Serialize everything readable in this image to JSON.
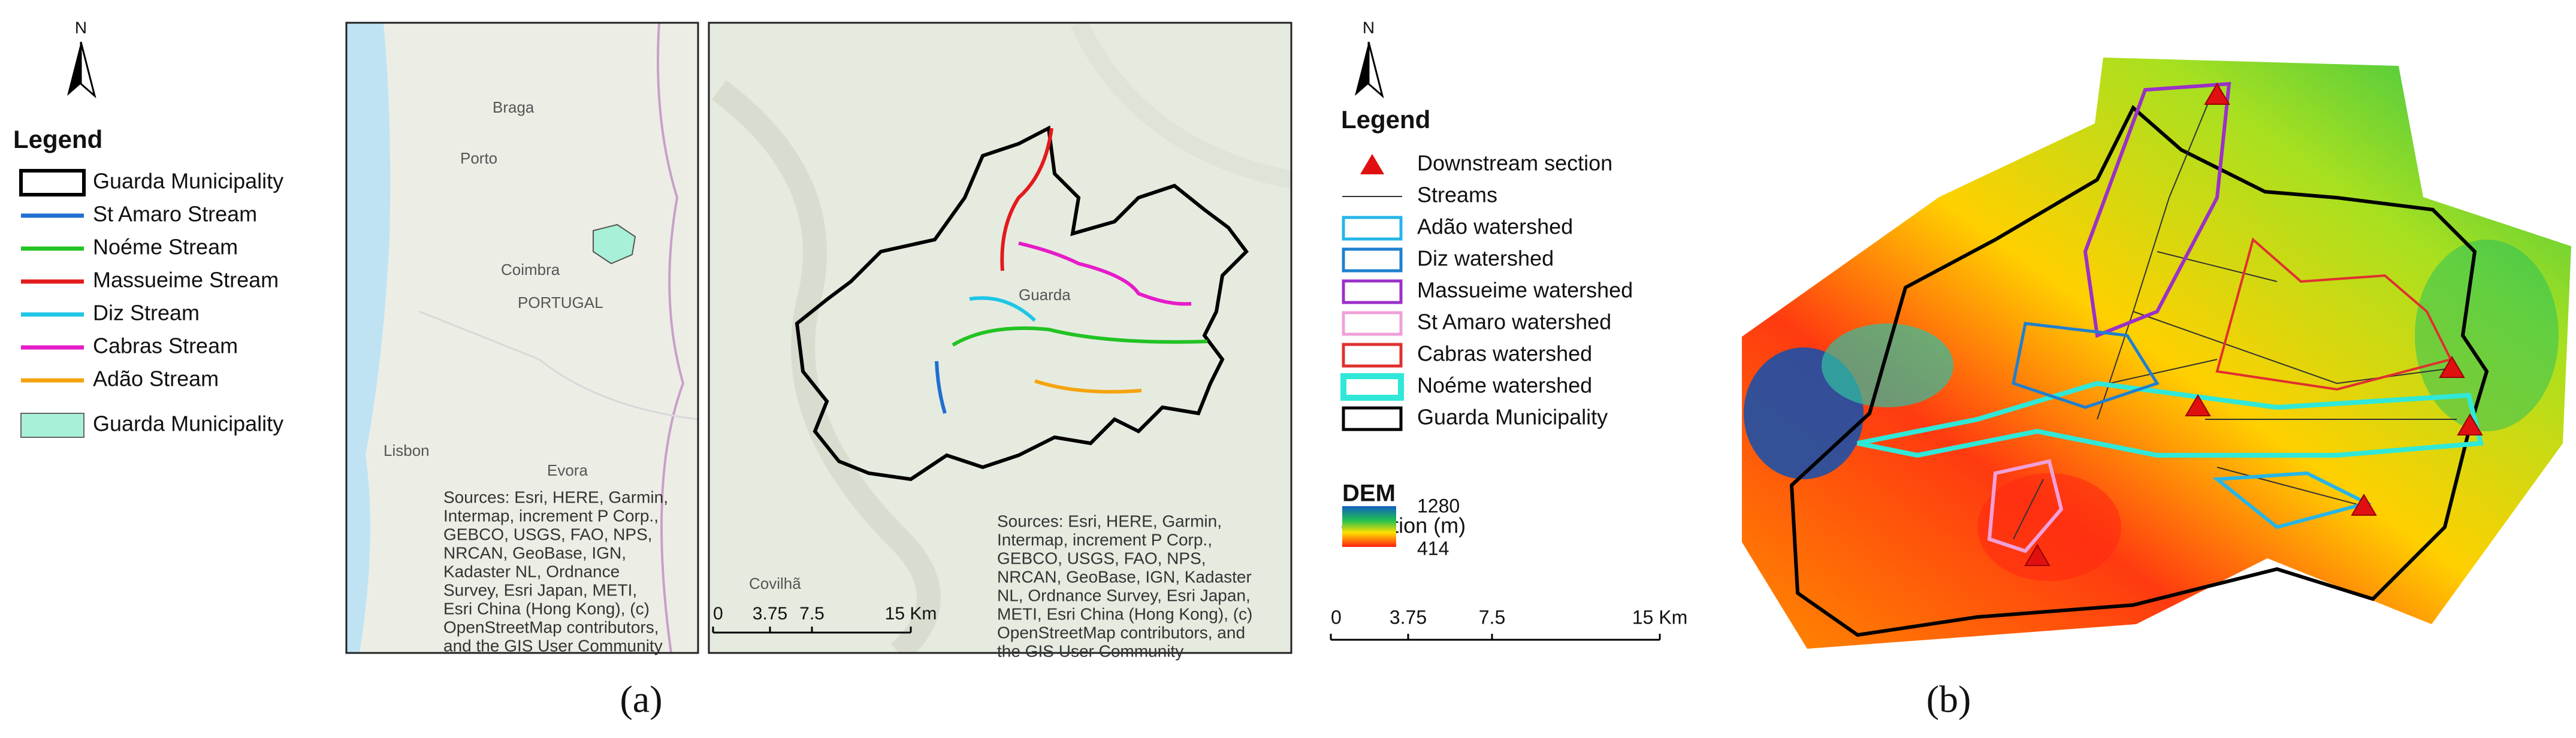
{
  "panel_a": {
    "north": "N",
    "legend_title": "Legend",
    "legend": [
      {
        "label": "Guarda Municipality",
        "color": "#000000"
      },
      {
        "label": "St Amaro Stream",
        "color": "#1f6fd1"
      },
      {
        "label": "Noéme Stream",
        "color": "#22c322"
      },
      {
        "label": "Massueime Stream",
        "color": "#e31a1c"
      },
      {
        "label": "Diz Stream",
        "color": "#1ec6e6"
      },
      {
        "label": "Cabras Stream",
        "color": "#e61cc8"
      },
      {
        "label": "Adão Stream",
        "color": "#f5a40f"
      },
      {
        "label": "Guarda Municipality",
        "color": "#a8f0d8"
      }
    ],
    "overview_labels": [
      "Braga",
      "Porto",
      "Coimbra",
      "PORTUGAL",
      "Lisbon",
      "Evora"
    ],
    "detail_labels": [
      "Guarda",
      "Covilhã"
    ],
    "attribution_overview": [
      "Sources: Esri, HERE, Garmin,",
      "Intermap, increment P Corp.,",
      "GEBCO, USGS, FAO, NPS,",
      "NRCAN, GeoBase, IGN,",
      "Kadaster NL, Ordnance",
      "Survey, Esri Japan, METI,",
      "Esri China (Hong Kong), (c)",
      "OpenStreetMap contributors,",
      "and the GIS User Community"
    ],
    "attribution_detail": [
      "Sources: Esri, HERE, Garmin,",
      "Intermap, increment P Corp.,",
      "GEBCO, USGS, FAO, NPS,",
      "NRCAN, GeoBase, IGN, Kadaster",
      "NL, Ordnance Survey, Esri Japan,",
      "METI, Esri China (Hong Kong), (c)",
      "OpenStreetMap contributors, and",
      "the GIS User Community"
    ],
    "scale_bar": [
      "0",
      "3.75",
      "7.5",
      "15 Km"
    ],
    "caption": "(a)"
  },
  "panel_b": {
    "north": "N",
    "legend_title": "Legend",
    "legend": [
      {
        "label": "Downstream section",
        "color": "#e01010"
      },
      {
        "label": "Streams",
        "color": "#333333"
      },
      {
        "label": "Adão watershed",
        "color": "#26b5e8"
      },
      {
        "label": "Diz watershed",
        "color": "#1f7fd0"
      },
      {
        "label": "Massueime watershed",
        "color": "#9b30c8"
      },
      {
        "label": "St Amaro watershed",
        "color": "#f0a0d8"
      },
      {
        "label": "Cabras watershed",
        "color": "#e03030"
      },
      {
        "label": "Noéme watershed",
        "color": "#30e8d8"
      },
      {
        "label": "Guarda Municipality",
        "color": "#000000"
      }
    ],
    "dem_title": "DEM",
    "dem_unit": "elevation (m)",
    "dem_max": 1280,
    "dem_min": 414,
    "scale_bar": [
      "0",
      "3.75",
      "7.5",
      "15 Km"
    ],
    "caption": "(b)"
  }
}
